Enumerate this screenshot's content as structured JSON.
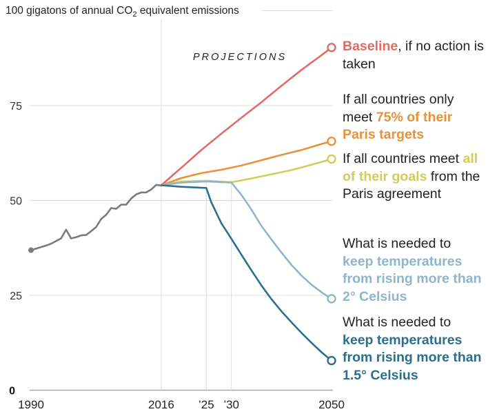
{
  "chart_data": {
    "type": "line",
    "title": "",
    "ylabel_prefix": "100 gigatons of annual CO",
    "ylabel_sub": "2",
    "ylabel_suffix": " equivalent emissions",
    "ylim": [
      0,
      100
    ],
    "xlim": [
      1990,
      2050
    ],
    "yticks": [
      {
        "value": 0,
        "label": "0"
      },
      {
        "value": 25,
        "label": "25"
      },
      {
        "value": 50,
        "label": "50"
      },
      {
        "value": 75,
        "label": "75"
      }
    ],
    "xticks": [
      {
        "value": 1990,
        "label": "1990"
      },
      {
        "value": 2016,
        "label": "2016"
      },
      {
        "value": 2025,
        "label": "’25"
      },
      {
        "value": 2030,
        "label": "’30"
      },
      {
        "value": 2050,
        "label": "2050"
      }
    ],
    "vlines": [
      2016,
      2025,
      2030
    ],
    "annotation": "PROJECTIONS",
    "grid": true,
    "series": [
      {
        "name": "Historical",
        "color": "#7a7a7a",
        "start_marker": "dot",
        "x": [
          1990,
          1991,
          1992,
          1993,
          1994,
          1995,
          1996,
          1997,
          1998,
          1999,
          2000,
          2001,
          2002,
          2003,
          2004,
          2005,
          2006,
          2007,
          2008,
          2009,
          2010,
          2011,
          2012,
          2013,
          2014,
          2015,
          2016
        ],
        "y": [
          36.9,
          37.3,
          37.7,
          38.1,
          38.6,
          39.3,
          40.0,
          42.3,
          40.0,
          40.3,
          40.8,
          40.9,
          41.9,
          43.0,
          45.1,
          46.2,
          48.0,
          47.8,
          48.9,
          48.9,
          50.5,
          51.6,
          52.1,
          52.1,
          52.9,
          54.1,
          53.9
        ]
      },
      {
        "name": "Baseline",
        "color": "#e06b64",
        "end_marker": "ring",
        "x": [
          2016,
          2020,
          2024,
          2028,
          2032,
          2036,
          2040,
          2044,
          2048,
          2050
        ],
        "y": [
          54.0,
          58.6,
          63.3,
          67.6,
          71.8,
          75.9,
          80.2,
          84.4,
          88.3,
          90.3
        ]
      },
      {
        "name": "75% of Paris targets",
        "color": "#e8913a",
        "end_marker": "ring",
        "x": [
          2016,
          2020,
          2024,
          2028,
          2032,
          2036,
          2040,
          2044,
          2048,
          2050
        ],
        "y": [
          54.0,
          55.9,
          57.2,
          58.1,
          59.2,
          60.6,
          62.0,
          63.3,
          64.9,
          65.6
        ]
      },
      {
        "name": "All Paris goals",
        "color": "#d4cc5a",
        "end_marker": "ring",
        "x": [
          2016,
          2020,
          2025,
          2030,
          2034,
          2038,
          2042,
          2046,
          2050
        ],
        "y": [
          54.0,
          55.0,
          55.2,
          54.8,
          55.8,
          56.9,
          58.0,
          59.4,
          60.9
        ]
      },
      {
        "name": "Below 2° Celsius",
        "color": "#8fb5cc",
        "end_marker": "ring",
        "x": [
          2016,
          2020,
          2025,
          2030,
          2032,
          2034,
          2036,
          2038,
          2040,
          2042,
          2044,
          2046,
          2048,
          2050
        ],
        "y": [
          54.0,
          54.7,
          55.0,
          54.7,
          51.5,
          47.6,
          43.3,
          39.7,
          36.3,
          33.0,
          30.2,
          27.8,
          25.8,
          24.1
        ]
      },
      {
        "name": "Below 1.5° Celsius",
        "color": "#2b6e8f",
        "end_marker": "ring",
        "x": [
          2016,
          2020,
          2025,
          2026,
          2028,
          2030,
          2032,
          2034,
          2036,
          2038,
          2040,
          2042,
          2044,
          2046,
          2048,
          2050
        ],
        "y": [
          54.0,
          53.6,
          53.3,
          49.5,
          44.0,
          39.9,
          35.7,
          31.6,
          27.6,
          24.0,
          20.8,
          17.9,
          15.1,
          12.5,
          10.0,
          7.8
        ]
      }
    ]
  },
  "labels": {
    "baseline": {
      "highlight": "Baseline",
      "rest": ", if no action is taken",
      "color": "#e06b64"
    },
    "seventy_five": {
      "pre": "If all countries only meet ",
      "highlight": "75% of their Paris targets",
      "color": "#e8913a"
    },
    "all_goals": {
      "pre": "If all countries meet ",
      "highlight": "all of their goals",
      "rest": " from the Paris agreement",
      "color": "#d4cc5a"
    },
    "two_degrees": {
      "pre": "What is needed to ",
      "highlight": "keep temperatures from rising more than 2° Celsius",
      "color": "#8fb5cc"
    },
    "one_five_degrees": {
      "pre": "What is needed to ",
      "highlight": "keep temperatures from rising more than 1.5° Celsius",
      "color": "#2b6e8f"
    }
  }
}
